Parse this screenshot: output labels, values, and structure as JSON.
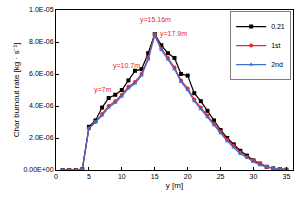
{
  "chart_data": {
    "type": "line",
    "x_label": "y [m]",
    "y_label": "Char burnout rate [kg · s⁻¹]",
    "x": [
      1,
      2,
      3,
      4,
      5,
      6,
      7,
      8,
      9,
      10,
      11,
      12,
      13,
      14,
      15,
      16,
      17,
      18,
      19,
      20,
      21,
      22,
      23,
      24,
      25,
      26,
      27,
      28,
      29,
      30,
      31,
      32,
      33,
      34,
      35
    ],
    "series": [
      {
        "name": "0.21",
        "color": "#000000",
        "marker": "square",
        "values": [
          0,
          0,
          0,
          5e-08,
          2.7e-06,
          3.1e-06,
          3.9e-06,
          4.5e-06,
          4.7e-06,
          5e-06,
          5.6e-06,
          6.2e-06,
          6.3e-06,
          7.3e-06,
          8.5e-06,
          7.8e-06,
          7.3e-06,
          7e-06,
          6e-06,
          5.9e-06,
          4.8e-06,
          4.3e-06,
          3.7e-06,
          3.1e-06,
          2.5e-06,
          2e-06,
          1.6e-06,
          1.2e-06,
          9e-07,
          6e-07,
          4e-07,
          2e-07,
          1e-07,
          5e-08,
          2e-08
        ]
      },
      {
        "name": "1st",
        "color": "#e8262a",
        "marker": "circle",
        "values": [
          0,
          0,
          0,
          5e-08,
          2.6e-06,
          3e-06,
          3.5e-06,
          4e-06,
          4.3e-06,
          4.7e-06,
          5.2e-06,
          5.5e-06,
          6e-06,
          7e-06,
          8.5e-06,
          7.6e-06,
          7e-06,
          6.4e-06,
          5.6e-06,
          5.1e-06,
          4.4e-06,
          3.9e-06,
          3.4e-06,
          2.9e-06,
          2.4e-06,
          1.9e-06,
          1.5e-06,
          1.1e-06,
          8e-07,
          6e-07,
          4e-07,
          2e-07,
          1e-07,
          5e-08,
          2e-08
        ]
      },
      {
        "name": "2nd",
        "color": "#3b6fd4",
        "marker": "triangle-up",
        "values": [
          0,
          0,
          0,
          5e-08,
          2.6e-06,
          3e-06,
          3.4e-06,
          3.9e-06,
          4.2e-06,
          4.6e-06,
          5.1e-06,
          5.4e-06,
          5.9e-06,
          6.9e-06,
          8.4e-06,
          7.5e-06,
          6.9e-06,
          6.3e-06,
          5.5e-06,
          5e-06,
          4.3e-06,
          3.8e-06,
          3.3e-06,
          2.8e-06,
          2.3e-06,
          1.8e-06,
          1.4e-06,
          1e-06,
          8e-07,
          5e-07,
          3e-07,
          2e-07,
          1e-07,
          5e-08,
          2e-08
        ]
      }
    ],
    "annotations": [
      {
        "text": "y=7m",
        "x": 7,
        "y": 4.6e-06
      },
      {
        "text": "y=10.7m",
        "x": 10.7,
        "y": 6.1e-06
      },
      {
        "text": "y=15.16m",
        "x": 15.16,
        "y": 9e-06
      },
      {
        "text": "y=17.9m",
        "x": 17.9,
        "y": 8.1e-06
      }
    ],
    "xlim": [
      0,
      36
    ],
    "xticks": [
      0,
      5,
      10,
      15,
      20,
      25,
      30,
      35
    ],
    "ylim": [
      0,
      1e-05
    ],
    "yticks": [
      {
        "value": 0,
        "label": "0.00E+00"
      },
      {
        "value": 2e-06,
        "label": "2.0E-06"
      },
      {
        "value": 4e-06,
        "label": "4.0E-06"
      },
      {
        "value": 6e-06,
        "label": "6.0E-06"
      },
      {
        "value": 8e-06,
        "label": "8.0E-06"
      },
      {
        "value": 1e-05,
        "label": "1.0E-05"
      }
    ],
    "legend": "upper right",
    "grid": false
  }
}
